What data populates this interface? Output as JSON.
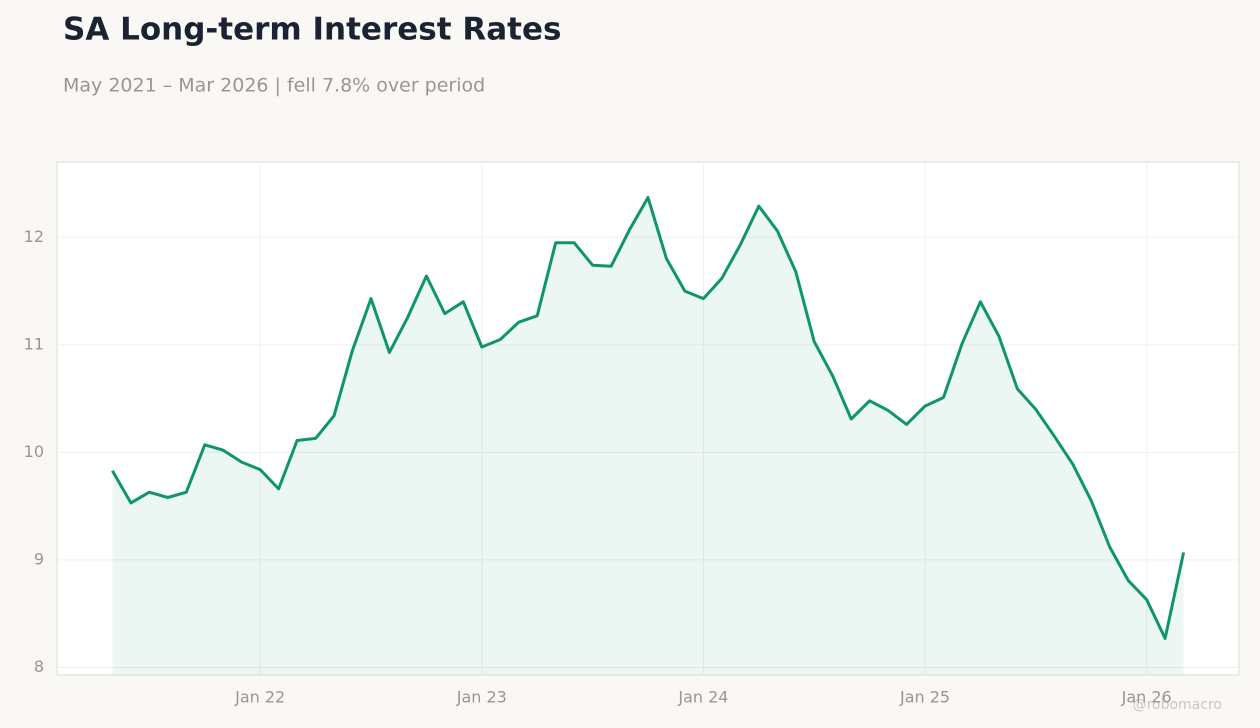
{
  "chart_data": {
    "type": "line",
    "title": "SA Long-term Interest Rates",
    "subtitle": "May 2021 – Mar 2026 | fell 7.8% over period",
    "watermark": "@robomacro",
    "x": [
      "2021-05",
      "2021-06",
      "2021-07",
      "2021-08",
      "2021-09",
      "2021-10",
      "2021-11",
      "2021-12",
      "2022-01",
      "2022-02",
      "2022-03",
      "2022-04",
      "2022-05",
      "2022-06",
      "2022-07",
      "2022-08",
      "2022-09",
      "2022-10",
      "2022-11",
      "2022-12",
      "2023-01",
      "2023-02",
      "2023-03",
      "2023-04",
      "2023-05",
      "2023-06",
      "2023-07",
      "2023-08",
      "2023-09",
      "2023-10",
      "2023-11",
      "2023-12",
      "2024-01",
      "2024-02",
      "2024-03",
      "2024-04",
      "2024-05",
      "2024-06",
      "2024-07",
      "2024-08",
      "2024-09",
      "2024-10",
      "2024-11",
      "2024-12",
      "2025-01",
      "2025-02",
      "2025-03",
      "2025-04",
      "2025-05",
      "2025-06",
      "2025-07",
      "2025-08",
      "2025-09",
      "2025-10",
      "2025-11",
      "2025-12",
      "2026-01",
      "2026-02",
      "2026-03"
    ],
    "series": [
      {
        "name": "SA Long-term Interest Rates",
        "color": "#0f9668",
        "values": [
          9.83,
          9.53,
          9.63,
          9.58,
          9.63,
          10.07,
          10.02,
          9.91,
          9.84,
          9.66,
          10.11,
          10.13,
          10.34,
          10.95,
          11.43,
          10.93,
          11.26,
          11.64,
          11.29,
          11.4,
          10.98,
          11.05,
          11.21,
          11.27,
          11.95,
          11.95,
          11.74,
          11.73,
          12.07,
          12.37,
          11.8,
          11.5,
          11.43,
          11.62,
          11.93,
          12.29,
          12.06,
          11.68,
          11.03,
          10.71,
          10.31,
          10.48,
          10.39,
          10.26,
          10.43,
          10.51,
          11.01,
          11.4,
          11.08,
          10.59,
          10.4,
          10.15,
          9.89,
          9.55,
          9.12,
          8.81,
          8.63,
          8.27,
          9.07
        ]
      }
    ],
    "xlim": [
      "2021-02",
      "2026-06"
    ],
    "xticks": [
      {
        "value": "2022-01",
        "label": "Jan 22"
      },
      {
        "value": "2023-01",
        "label": "Jan 23"
      },
      {
        "value": "2024-01",
        "label": "Jan 24"
      },
      {
        "value": "2025-01",
        "label": "Jan 25"
      },
      {
        "value": "2026-01",
        "label": "Jan 26"
      }
    ],
    "ylim": [
      7.93,
      12.7
    ],
    "yticks": [
      8,
      9,
      10,
      11,
      12
    ],
    "grid": true
  }
}
